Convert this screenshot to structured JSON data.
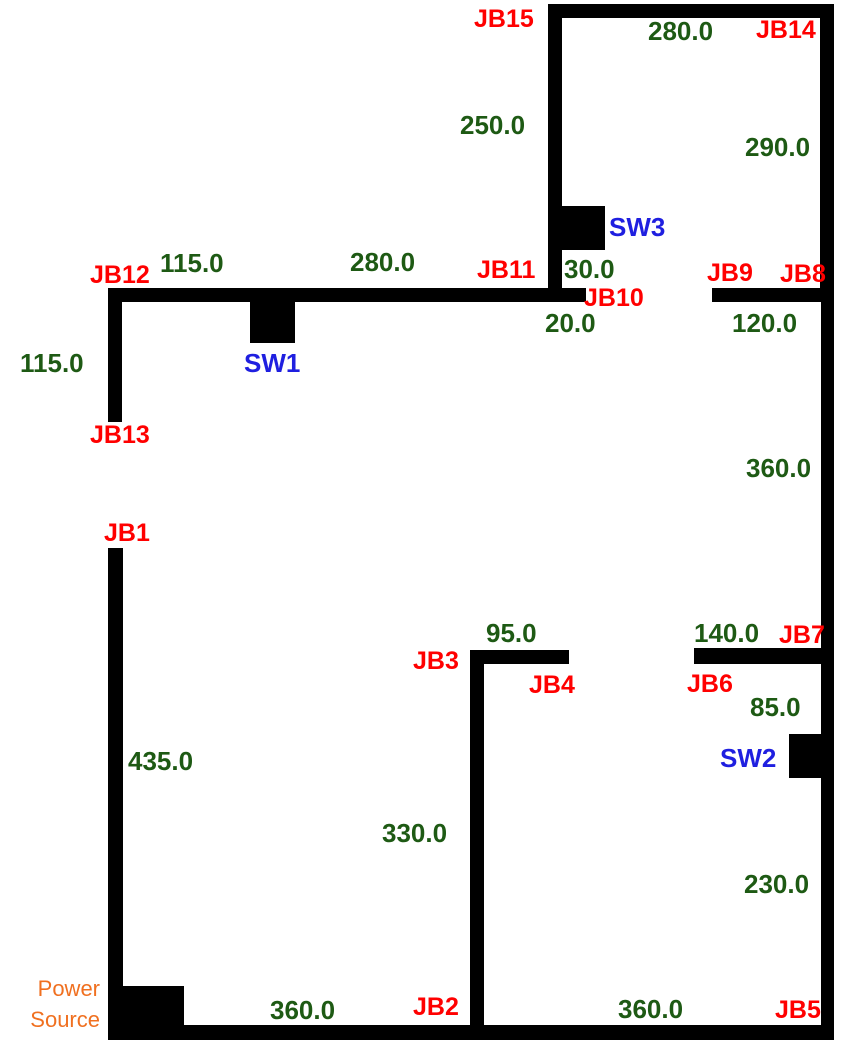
{
  "colors": {
    "wire": "#000000",
    "junction_box_label": "#ff0000",
    "length_label": "#1e5a14",
    "switch_label": "#1f1fe0",
    "power_source_label": "#f07020"
  },
  "power_source": {
    "line1": "Power",
    "line2": "Source"
  },
  "junction_boxes": {
    "jb1": "JB1",
    "jb2": "JB2",
    "jb3": "JB3",
    "jb4": "JB4",
    "jb5": "JB5",
    "jb6": "JB6",
    "jb7": "JB7",
    "jb8": "JB8",
    "jb9": "JB9",
    "jb10": "JB10",
    "jb11": "JB11",
    "jb12": "JB12",
    "jb13": "JB13",
    "jb14": "JB14",
    "jb15": "JB15"
  },
  "switches": {
    "sw1": "SW1",
    "sw2": "SW2",
    "sw3": "SW3"
  },
  "segments": {
    "ps_jb1": "435.0",
    "ps_jb2": "360.0",
    "jb2_jb3": "330.0",
    "jb3_jb4": "95.0",
    "jb2_jb5": "360.0",
    "jb5_sw2": "230.0",
    "sw2_jb7": "85.0",
    "jb6_jb7": "140.0",
    "jb7_jb8": "360.0",
    "jb8_jb9": "120.0",
    "jb8_jb14": "290.0",
    "jb14_jb15": "280.0",
    "jb15_sw3": "250.0",
    "sw3_jb11": "30.0",
    "jb11_jb10": "20.0",
    "jb11_sw1": "280.0",
    "sw1_jb12": "115.0",
    "jb12_jb13": "115.0"
  }
}
